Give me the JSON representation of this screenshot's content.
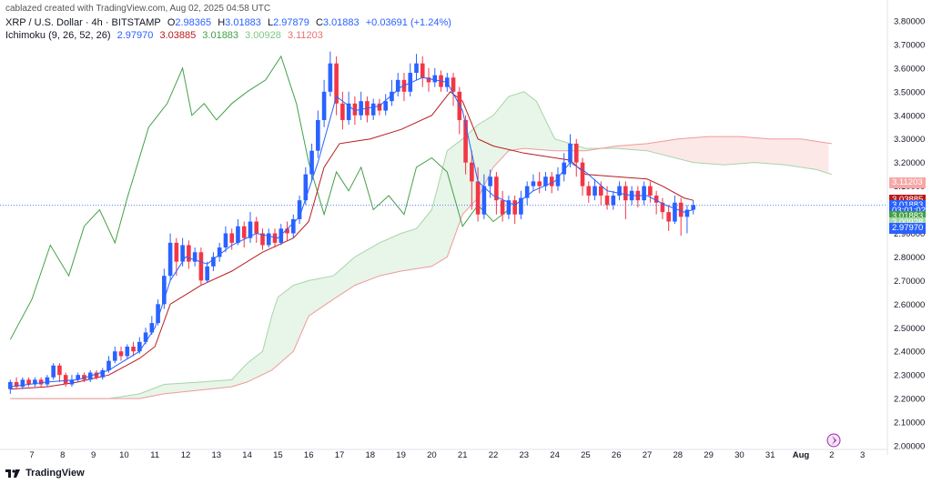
{
  "header": {
    "credit": "cablazed created with TradingView.com, Aug 02, 2025 04:58 UTC",
    "symbol": "XRP / U.S. Dollar · 4h · BITSTAMP",
    "ohlc": {
      "o_label": "O",
      "o_value": "2.98365",
      "h_label": "H",
      "h_value": "3.01883",
      "l_label": "L",
      "l_value": "2.97879",
      "c_label": "C",
      "c_value": "3.01883",
      "change": "+0.03691 (+1.24%)"
    },
    "indicator": {
      "name": "Ichimoku (9, 26, 52, 26)",
      "v1": "2.97970",
      "v2": "3.03885",
      "v3": "3.01883",
      "v4": "3.00928",
      "v5": "3.11203"
    }
  },
  "colors": {
    "up": "#2962ff",
    "down": "#f23645",
    "conversion": "#2962ff",
    "base": "#b71c1c",
    "lagging": "#43a047",
    "span_a": "#a5d6a7",
    "span_b": "#ef9a9a",
    "cloud_bull": "#e8f5e9",
    "cloud_bear": "#fde8e8",
    "text": "#131722"
  },
  "price_tags": [
    {
      "label": "3.11203",
      "color": "#f7a7a7",
      "value": 3.11203
    },
    {
      "label": "3.03885",
      "color": "#b71c1c",
      "value": 3.03885
    },
    {
      "label": "3.01883",
      "color": "#2962ff",
      "value": 3.01883
    },
    {
      "label": "03:01:02",
      "color": "#2962ff",
      "value": 2.995
    },
    {
      "label": "3.01883",
      "color": "#43a047",
      "value": 2.97
    },
    {
      "label": "3.00928",
      "color": "#a5d6a7",
      "value": 2.945
    },
    {
      "label": "2.97970",
      "color": "#2962ff",
      "value": 2.92
    }
  ],
  "footer": {
    "brand": "TradingView"
  },
  "chart_data": {
    "type": "candlestick",
    "title": "XRP / U.S. Dollar · 4h · BITSTAMP",
    "y_ticks": [
      "3.80000",
      "3.70000",
      "3.60000",
      "3.50000",
      "3.40000",
      "3.30000",
      "3.20000",
      "3.10000",
      "3.00000",
      "2.90000",
      "2.80000",
      "2.70000",
      "2.60000",
      "2.50000",
      "2.40000",
      "2.30000",
      "2.20000",
      "2.10000",
      "2.00000"
    ],
    "ylim": [
      2.0,
      3.85
    ],
    "x_ticks": [
      "7",
      "8",
      "9",
      "10",
      "11",
      "12",
      "13",
      "14",
      "15",
      "16",
      "17",
      "18",
      "19",
      "20",
      "21",
      "22",
      "23",
      "24",
      "25",
      "26",
      "27",
      "28",
      "29",
      "30",
      "31",
      "Aug",
      "2",
      "3"
    ],
    "x_range": [
      6.2,
      34.0
    ],
    "last_price": 3.01883,
    "candles": [
      [
        6.3,
        2.24,
        2.27,
        2.22,
        2.28
      ],
      [
        6.5,
        2.27,
        2.25,
        2.24,
        2.29
      ],
      [
        6.7,
        2.25,
        2.28,
        2.24,
        2.29
      ],
      [
        6.9,
        2.28,
        2.26,
        2.25,
        2.29
      ],
      [
        7.1,
        2.26,
        2.28,
        2.25,
        2.29
      ],
      [
        7.3,
        2.28,
        2.26,
        2.25,
        2.29
      ],
      [
        7.5,
        2.26,
        2.29,
        2.25,
        2.3
      ],
      [
        7.7,
        2.29,
        2.34,
        2.28,
        2.35
      ],
      [
        7.9,
        2.34,
        2.3,
        2.27,
        2.35
      ],
      [
        8.1,
        2.3,
        2.26,
        2.25,
        2.31
      ],
      [
        8.3,
        2.26,
        2.28,
        2.25,
        2.3
      ],
      [
        8.5,
        2.28,
        2.3,
        2.27,
        2.31
      ],
      [
        8.7,
        2.3,
        2.28,
        2.27,
        2.31
      ],
      [
        8.9,
        2.28,
        2.31,
        2.27,
        2.32
      ],
      [
        9.1,
        2.31,
        2.29,
        2.28,
        2.32
      ],
      [
        9.3,
        2.29,
        2.32,
        2.28,
        2.33
      ],
      [
        9.5,
        2.32,
        2.36,
        2.31,
        2.38
      ],
      [
        9.7,
        2.36,
        2.4,
        2.35,
        2.42
      ],
      [
        9.9,
        2.4,
        2.38,
        2.36,
        2.42
      ],
      [
        10.1,
        2.38,
        2.42,
        2.37,
        2.43
      ],
      [
        10.3,
        2.42,
        2.4,
        2.38,
        2.44
      ],
      [
        10.5,
        2.4,
        2.44,
        2.39,
        2.46
      ],
      [
        10.7,
        2.44,
        2.48,
        2.43,
        2.5
      ],
      [
        10.9,
        2.48,
        2.52,
        2.47,
        2.55
      ],
      [
        11.1,
        2.52,
        2.6,
        2.51,
        2.62
      ],
      [
        11.3,
        2.6,
        2.72,
        2.58,
        2.75
      ],
      [
        11.5,
        2.72,
        2.86,
        2.7,
        2.9
      ],
      [
        11.7,
        2.86,
        2.78,
        2.72,
        2.88
      ],
      [
        11.9,
        2.78,
        2.85,
        2.76,
        2.88
      ],
      [
        12.1,
        2.85,
        2.78,
        2.75,
        2.87
      ],
      [
        12.3,
        2.78,
        2.82,
        2.76,
        2.84
      ],
      [
        12.5,
        2.82,
        2.7,
        2.68,
        2.84
      ],
      [
        12.7,
        2.7,
        2.76,
        2.69,
        2.78
      ],
      [
        12.9,
        2.76,
        2.8,
        2.74,
        2.82
      ],
      [
        13.1,
        2.8,
        2.84,
        2.78,
        2.86
      ],
      [
        13.3,
        2.84,
        2.9,
        2.82,
        2.93
      ],
      [
        13.5,
        2.9,
        2.86,
        2.83,
        2.92
      ],
      [
        13.7,
        2.86,
        2.93,
        2.85,
        2.96
      ],
      [
        13.9,
        2.93,
        2.88,
        2.84,
        2.95
      ],
      [
        14.1,
        2.88,
        2.95,
        2.86,
        2.99
      ],
      [
        14.3,
        2.95,
        2.9,
        2.86,
        2.97
      ],
      [
        14.5,
        2.9,
        2.85,
        2.83,
        2.92
      ],
      [
        14.7,
        2.85,
        2.9,
        2.84,
        2.92
      ],
      [
        14.9,
        2.9,
        2.86,
        2.84,
        2.92
      ],
      [
        15.1,
        2.86,
        2.92,
        2.85,
        2.94
      ],
      [
        15.3,
        2.92,
        2.9,
        2.87,
        2.95
      ],
      [
        15.5,
        2.9,
        2.96,
        2.88,
        2.98
      ],
      [
        15.7,
        2.96,
        3.04,
        2.94,
        3.06
      ],
      [
        15.9,
        3.04,
        3.15,
        3.02,
        3.18
      ],
      [
        16.1,
        3.15,
        3.25,
        3.12,
        3.28
      ],
      [
        16.3,
        3.25,
        3.38,
        3.22,
        3.42
      ],
      [
        16.5,
        3.38,
        3.5,
        3.35,
        3.55
      ],
      [
        16.7,
        3.5,
        3.62,
        3.48,
        3.67
      ],
      [
        16.9,
        3.62,
        3.45,
        3.4,
        3.65
      ],
      [
        17.1,
        3.45,
        3.38,
        3.34,
        3.5
      ],
      [
        17.3,
        3.38,
        3.45,
        3.36,
        3.5
      ],
      [
        17.5,
        3.45,
        3.4,
        3.36,
        3.48
      ],
      [
        17.7,
        3.4,
        3.46,
        3.38,
        3.5
      ],
      [
        17.9,
        3.46,
        3.4,
        3.37,
        3.48
      ],
      [
        18.1,
        3.4,
        3.45,
        3.38,
        3.47
      ],
      [
        18.3,
        3.45,
        3.42,
        3.4,
        3.47
      ],
      [
        18.5,
        3.42,
        3.46,
        3.4,
        3.49
      ],
      [
        18.7,
        3.46,
        3.5,
        3.44,
        3.55
      ],
      [
        18.9,
        3.5,
        3.55,
        3.48,
        3.58
      ],
      [
        19.1,
        3.55,
        3.5,
        3.46,
        3.58
      ],
      [
        19.3,
        3.5,
        3.58,
        3.48,
        3.62
      ],
      [
        19.5,
        3.58,
        3.62,
        3.55,
        3.66
      ],
      [
        19.7,
        3.62,
        3.56,
        3.52,
        3.65
      ],
      [
        19.9,
        3.56,
        3.54,
        3.5,
        3.6
      ],
      [
        20.1,
        3.54,
        3.57,
        3.52,
        3.6
      ],
      [
        20.3,
        3.57,
        3.52,
        3.5,
        3.59
      ],
      [
        20.5,
        3.52,
        3.56,
        3.5,
        3.58
      ],
      [
        20.7,
        3.56,
        3.5,
        3.44,
        3.58
      ],
      [
        20.9,
        3.5,
        3.38,
        3.32,
        3.52
      ],
      [
        21.1,
        3.38,
        3.2,
        3.15,
        3.4
      ],
      [
        21.3,
        3.2,
        3.12,
        3.0,
        3.25
      ],
      [
        21.5,
        3.12,
        2.98,
        2.95,
        3.18
      ],
      [
        21.7,
        2.98,
        3.1,
        2.96,
        3.15
      ],
      [
        21.9,
        3.1,
        3.14,
        3.05,
        3.17
      ],
      [
        22.1,
        3.14,
        3.04,
        2.98,
        3.16
      ],
      [
        22.3,
        3.04,
        2.98,
        2.95,
        3.08
      ],
      [
        22.5,
        2.98,
        3.04,
        2.96,
        3.06
      ],
      [
        22.7,
        3.04,
        2.98,
        2.94,
        3.06
      ],
      [
        22.9,
        2.98,
        3.05,
        2.96,
        3.08
      ],
      [
        23.1,
        3.05,
        3.1,
        3.02,
        3.12
      ],
      [
        23.3,
        3.1,
        3.12,
        3.08,
        3.15
      ],
      [
        23.5,
        3.12,
        3.1,
        3.07,
        3.16
      ],
      [
        23.7,
        3.1,
        3.14,
        3.08,
        3.16
      ],
      [
        23.9,
        3.14,
        3.1,
        3.07,
        3.16
      ],
      [
        24.1,
        3.1,
        3.15,
        3.08,
        3.18
      ],
      [
        24.3,
        3.15,
        3.2,
        3.12,
        3.24
      ],
      [
        24.5,
        3.2,
        3.28,
        3.18,
        3.32
      ],
      [
        24.7,
        3.28,
        3.2,
        3.14,
        3.3
      ],
      [
        24.9,
        3.2,
        3.1,
        3.06,
        3.22
      ],
      [
        25.1,
        3.1,
        3.06,
        3.03,
        3.12
      ],
      [
        25.3,
        3.06,
        3.1,
        3.04,
        3.13
      ],
      [
        25.5,
        3.1,
        3.06,
        3.02,
        3.12
      ],
      [
        25.7,
        3.06,
        3.02,
        3.0,
        3.1
      ],
      [
        25.9,
        3.02,
        3.06,
        3.0,
        3.08
      ],
      [
        26.1,
        3.06,
        3.1,
        3.04,
        3.12
      ],
      [
        26.3,
        3.1,
        3.04,
        2.96,
        3.12
      ],
      [
        26.5,
        3.04,
        3.08,
        3.02,
        3.1
      ],
      [
        26.7,
        3.08,
        3.04,
        3.01,
        3.1
      ],
      [
        26.9,
        3.04,
        3.1,
        3.02,
        3.12
      ],
      [
        27.1,
        3.1,
        3.06,
        3.03,
        3.12
      ],
      [
        27.3,
        3.06,
        3.03,
        2.98,
        3.08
      ],
      [
        27.5,
        3.03,
        2.99,
        2.96,
        3.05
      ],
      [
        27.7,
        2.99,
        2.95,
        2.91,
        3.02
      ],
      [
        27.9,
        2.95,
        3.03,
        2.94,
        3.06
      ],
      [
        28.1,
        3.03,
        2.97,
        2.89,
        3.05
      ],
      [
        28.3,
        2.97,
        3.0,
        2.9,
        3.02
      ],
      [
        28.5,
        3.0,
        3.02,
        2.98,
        3.04
      ]
    ],
    "conversion_line": [
      [
        6.3,
        2.25
      ],
      [
        7.5,
        2.27
      ],
      [
        8.5,
        2.28
      ],
      [
        9.5,
        2.32
      ],
      [
        10.5,
        2.4
      ],
      [
        11.0,
        2.5
      ],
      [
        11.5,
        2.7
      ],
      [
        12.0,
        2.8
      ],
      [
        12.7,
        2.77
      ],
      [
        13.5,
        2.85
      ],
      [
        14.3,
        2.9
      ],
      [
        15.0,
        2.88
      ],
      [
        15.7,
        2.97
      ],
      [
        16.3,
        3.2
      ],
      [
        16.9,
        3.48
      ],
      [
        17.5,
        3.42
      ],
      [
        18.3,
        3.44
      ],
      [
        19.0,
        3.52
      ],
      [
        19.7,
        3.56
      ],
      [
        20.5,
        3.54
      ],
      [
        21.0,
        3.42
      ],
      [
        21.5,
        3.12
      ],
      [
        22.0,
        3.06
      ],
      [
        22.7,
        3.02
      ],
      [
        23.3,
        3.08
      ],
      [
        24.0,
        3.12
      ],
      [
        24.5,
        3.2
      ],
      [
        25.0,
        3.16
      ],
      [
        25.7,
        3.08
      ],
      [
        26.5,
        3.06
      ],
      [
        27.0,
        3.06
      ],
      [
        27.6,
        3.02
      ],
      [
        28.2,
        2.99
      ],
      [
        28.5,
        3.0
      ]
    ],
    "base_line": [
      [
        6.3,
        2.24
      ],
      [
        7.5,
        2.25
      ],
      [
        8.5,
        2.27
      ],
      [
        9.5,
        2.3
      ],
      [
        10.5,
        2.37
      ],
      [
        11.0,
        2.42
      ],
      [
        11.5,
        2.6
      ],
      [
        12.5,
        2.68
      ],
      [
        13.5,
        2.74
      ],
      [
        14.5,
        2.82
      ],
      [
        15.5,
        2.88
      ],
      [
        16.0,
        2.95
      ],
      [
        16.5,
        3.18
      ],
      [
        17.0,
        3.28
      ],
      [
        18.0,
        3.3
      ],
      [
        19.0,
        3.34
      ],
      [
        20.0,
        3.4
      ],
      [
        20.6,
        3.5
      ],
      [
        21.0,
        3.46
      ],
      [
        21.5,
        3.3
      ],
      [
        22.0,
        3.27
      ],
      [
        23.0,
        3.24
      ],
      [
        24.0,
        3.22
      ],
      [
        24.5,
        3.21
      ],
      [
        25.0,
        3.15
      ],
      [
        26.0,
        3.14
      ],
      [
        27.0,
        3.13
      ],
      [
        27.5,
        3.1
      ],
      [
        28.2,
        3.05
      ],
      [
        28.5,
        3.04
      ]
    ],
    "lagging_span": [
      [
        6.3,
        2.45
      ],
      [
        7.0,
        2.62
      ],
      [
        7.6,
        2.85
      ],
      [
        8.2,
        2.72
      ],
      [
        8.7,
        2.93
      ],
      [
        9.2,
        3.0
      ],
      [
        9.7,
        2.86
      ],
      [
        10.1,
        3.05
      ],
      [
        10.8,
        3.35
      ],
      [
        11.4,
        3.45
      ],
      [
        11.9,
        3.6
      ],
      [
        12.2,
        3.4
      ],
      [
        12.6,
        3.45
      ],
      [
        13.0,
        3.38
      ],
      [
        13.5,
        3.45
      ],
      [
        14.0,
        3.5
      ],
      [
        14.6,
        3.55
      ],
      [
        15.1,
        3.65
      ],
      [
        15.6,
        3.45
      ],
      [
        16.0,
        3.2
      ],
      [
        16.5,
        2.98
      ],
      [
        16.9,
        3.16
      ],
      [
        17.3,
        3.08
      ],
      [
        17.7,
        3.18
      ],
      [
        18.1,
        3.0
      ],
      [
        18.6,
        3.06
      ],
      [
        19.1,
        2.98
      ],
      [
        19.5,
        3.18
      ],
      [
        20.0,
        3.22
      ],
      [
        20.5,
        3.16
      ],
      [
        21.0,
        2.93
      ],
      [
        21.5,
        3.02
      ],
      [
        22.0,
        2.95
      ],
      [
        22.5,
        3.0
      ]
    ],
    "leading_span_a": [
      [
        6.3,
        2.2
      ],
      [
        9.5,
        2.2
      ],
      [
        10.5,
        2.22
      ],
      [
        11.3,
        2.26
      ],
      [
        12.5,
        2.27
      ],
      [
        13.5,
        2.28
      ],
      [
        14.0,
        2.35
      ],
      [
        14.5,
        2.4
      ],
      [
        14.8,
        2.55
      ],
      [
        15.0,
        2.63
      ],
      [
        15.5,
        2.68
      ],
      [
        16.0,
        2.7
      ],
      [
        16.8,
        2.72
      ],
      [
        17.5,
        2.8
      ],
      [
        18.3,
        2.86
      ],
      [
        19.0,
        2.9
      ],
      [
        19.5,
        2.92
      ],
      [
        20.0,
        3.0
      ],
      [
        20.5,
        3.25
      ],
      [
        21.0,
        3.3
      ],
      [
        21.5,
        3.36
      ],
      [
        22.0,
        3.4
      ],
      [
        22.5,
        3.48
      ],
      [
        23.0,
        3.5
      ],
      [
        23.4,
        3.46
      ],
      [
        24.0,
        3.3
      ],
      [
        24.5,
        3.28
      ],
      [
        25.0,
        3.26
      ],
      [
        26.0,
        3.26
      ],
      [
        27.0,
        3.25
      ],
      [
        28.5,
        3.2
      ],
      [
        29.5,
        3.19
      ],
      [
        30.5,
        3.2
      ],
      [
        31.5,
        3.19
      ],
      [
        32.5,
        3.17
      ],
      [
        33.0,
        3.15
      ]
    ],
    "leading_span_b": [
      [
        6.3,
        2.2
      ],
      [
        10.5,
        2.2
      ],
      [
        11.3,
        2.22
      ],
      [
        13.5,
        2.25
      ],
      [
        14.0,
        2.27
      ],
      [
        14.8,
        2.32
      ],
      [
        15.5,
        2.4
      ],
      [
        16.0,
        2.55
      ],
      [
        16.8,
        2.62
      ],
      [
        17.5,
        2.68
      ],
      [
        18.3,
        2.72
      ],
      [
        19.0,
        2.74
      ],
      [
        20.0,
        2.76
      ],
      [
        20.5,
        2.8
      ],
      [
        21.0,
        2.98
      ],
      [
        21.5,
        3.05
      ],
      [
        22.0,
        3.18
      ],
      [
        22.5,
        3.25
      ],
      [
        23.0,
        3.26
      ],
      [
        24.0,
        3.25
      ],
      [
        25.0,
        3.25
      ],
      [
        26.0,
        3.27
      ],
      [
        27.0,
        3.28
      ],
      [
        28.0,
        3.3
      ],
      [
        29.0,
        3.31
      ],
      [
        30.0,
        3.31
      ],
      [
        31.0,
        3.3
      ],
      [
        32.0,
        3.3
      ],
      [
        33.0,
        3.28
      ]
    ]
  }
}
